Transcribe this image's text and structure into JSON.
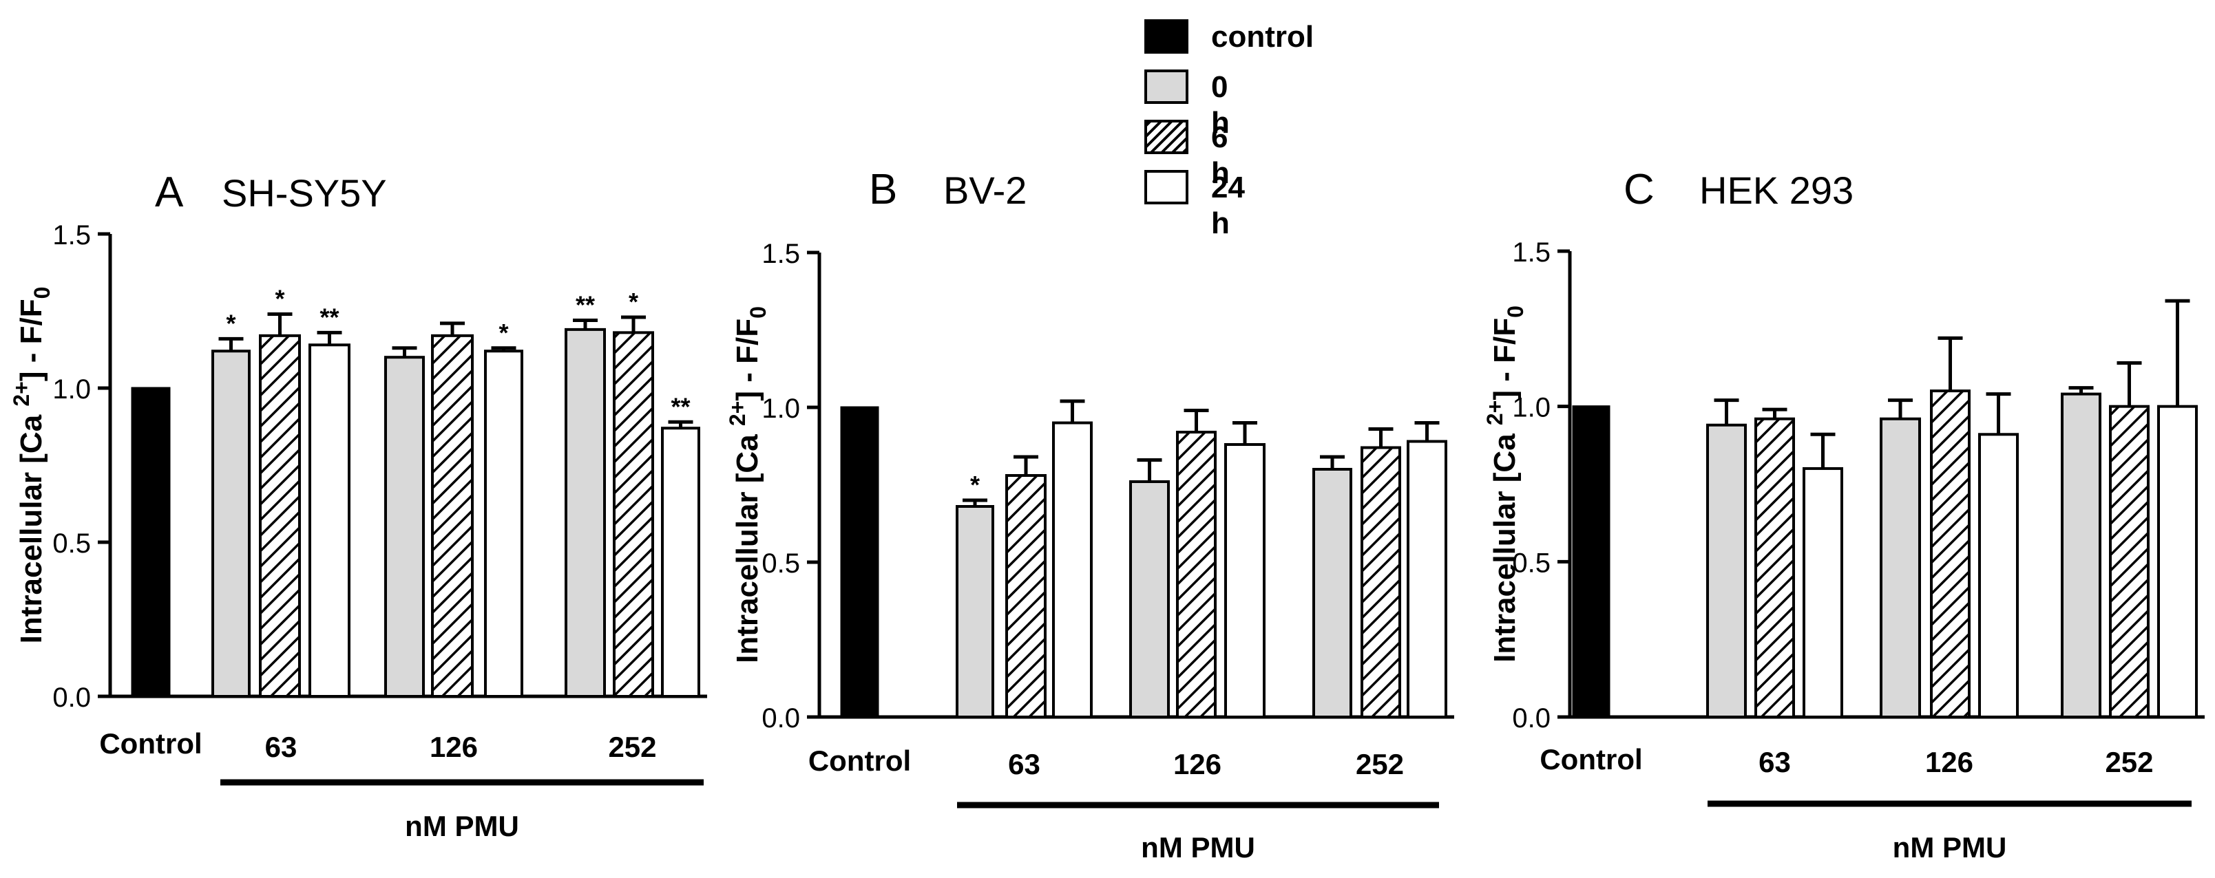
{
  "legend": [
    {
      "label": "control",
      "style": "black"
    },
    {
      "label": "0 h",
      "style": "gray"
    },
    {
      "label": "6 h",
      "style": "hatch"
    },
    {
      "label": "24 h",
      "style": "white"
    }
  ],
  "colors": {
    "control": "#000000",
    "gray": "#d9d9d9",
    "white": "#ffffff",
    "ink": "#000000"
  },
  "chart_data": [
    {
      "type": "bar",
      "panel_letter": "A",
      "title": "SH-SY5Y",
      "ylabel": "Intracellular [Ca 2+] - F/F0",
      "xlabel": "nM PMU",
      "ylim": [
        0,
        1.5
      ],
      "yticks": [
        "0.0",
        "0.5",
        "1.0",
        "1.5"
      ],
      "control": {
        "label": "Control",
        "value": 1.0
      },
      "categories": [
        "63",
        "126",
        "252"
      ],
      "series": [
        {
          "name": "0 h",
          "values": [
            1.12,
            1.1,
            1.19
          ],
          "errors": [
            0.04,
            0.03,
            0.03
          ],
          "marks": [
            "*",
            "",
            "**"
          ]
        },
        {
          "name": "6 h",
          "values": [
            1.17,
            1.17,
            1.18
          ],
          "errors": [
            0.07,
            0.04,
            0.05
          ],
          "marks": [
            "*",
            "",
            "*"
          ]
        },
        {
          "name": "24 h",
          "values": [
            1.14,
            1.12,
            0.87
          ],
          "errors": [
            0.04,
            0.01,
            0.02
          ],
          "marks": [
            "**",
            "*",
            "**"
          ]
        }
      ]
    },
    {
      "type": "bar",
      "panel_letter": "B",
      "title": "BV-2",
      "ylabel": "Intracellular [Ca 2+] - F/F0",
      "xlabel": "nM PMU",
      "ylim": [
        0,
        1.5
      ],
      "yticks": [
        "0.0",
        "0.5",
        "1.0",
        "1.5"
      ],
      "control": {
        "label": "Control",
        "value": 1.0
      },
      "categories": [
        "63",
        "126",
        "252"
      ],
      "series": [
        {
          "name": "0 h",
          "values": [
            0.68,
            0.76,
            0.8
          ],
          "errors": [
            0.02,
            0.07,
            0.04
          ],
          "marks": [
            "*",
            "",
            ""
          ]
        },
        {
          "name": "6 h",
          "values": [
            0.78,
            0.92,
            0.87
          ],
          "errors": [
            0.06,
            0.07,
            0.06
          ],
          "marks": [
            "",
            "",
            ""
          ]
        },
        {
          "name": "24 h",
          "values": [
            0.95,
            0.88,
            0.89
          ],
          "errors": [
            0.07,
            0.07,
            0.06
          ],
          "marks": [
            "",
            "",
            ""
          ]
        }
      ]
    },
    {
      "type": "bar",
      "panel_letter": "C",
      "title": "HEK 293",
      "ylabel": "Intracellular [Ca 2+] - F/F0",
      "xlabel": "nM PMU",
      "ylim": [
        0,
        1.5
      ],
      "yticks": [
        "0.0",
        "0.5",
        "1.0",
        "1.5"
      ],
      "control": {
        "label": "Control",
        "value": 1.0
      },
      "categories": [
        "63",
        "126",
        "252"
      ],
      "series": [
        {
          "name": "0 h",
          "values": [
            0.94,
            0.96,
            1.04
          ],
          "errors": [
            0.08,
            0.06,
            0.02
          ],
          "marks": [
            "",
            "",
            ""
          ]
        },
        {
          "name": "6 h",
          "values": [
            0.96,
            1.05,
            1.0
          ],
          "errors": [
            0.03,
            0.17,
            0.14
          ],
          "marks": [
            "",
            "",
            ""
          ]
        },
        {
          "name": "24 h",
          "values": [
            0.8,
            0.91,
            1.0
          ],
          "errors": [
            0.11,
            0.13,
            0.34
          ],
          "marks": [
            "",
            "",
            ""
          ]
        }
      ]
    }
  ]
}
